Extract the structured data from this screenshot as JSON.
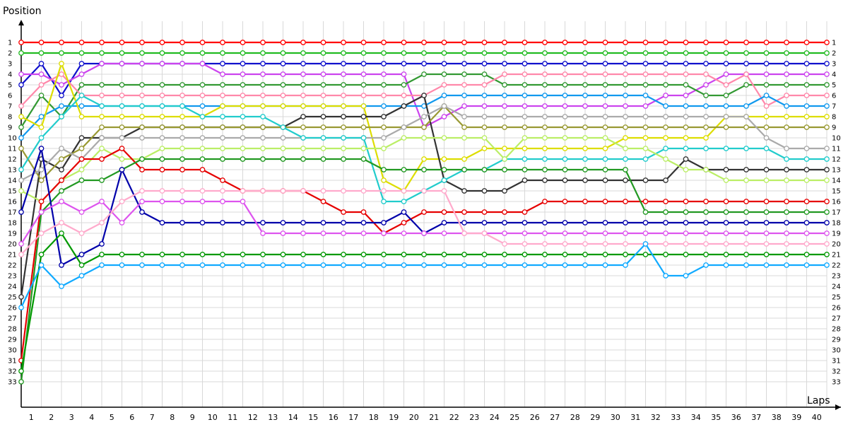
{
  "chart_data": {
    "type": "line",
    "ylabel": "Position",
    "xlabel": "Laps",
    "x": [
      0,
      1,
      2,
      3,
      4,
      5,
      6,
      7,
      8,
      9,
      10,
      11,
      12,
      13,
      14,
      15,
      16,
      17,
      18,
      19,
      20,
      21,
      22,
      23,
      24,
      25,
      26,
      27,
      28,
      29,
      30,
      31,
      32,
      33,
      34,
      35,
      36,
      37,
      38,
      39,
      40
    ],
    "x_tick_labels": [
      1,
      2,
      3,
      4,
      5,
      6,
      7,
      8,
      9,
      10,
      11,
      12,
      13,
      14,
      15,
      16,
      17,
      18,
      19,
      20,
      21,
      22,
      23,
      24,
      25,
      26,
      27,
      28,
      29,
      30,
      31,
      32,
      33,
      34,
      35,
      36,
      37,
      38,
      39,
      40
    ],
    "y_tick_labels": [
      1,
      2,
      3,
      4,
      5,
      6,
      7,
      8,
      9,
      10,
      11,
      12,
      13,
      14,
      15,
      16,
      17,
      18,
      19,
      20,
      21,
      22,
      23,
      24,
      25,
      26,
      27,
      28,
      29,
      30,
      31,
      32,
      33
    ],
    "ylim": [
      1,
      33
    ],
    "y_inverted": true,
    "grid": true,
    "series": [
      {
        "color": "#ff0000",
        "values": [
          1,
          1,
          1,
          1,
          1,
          1,
          1,
          1,
          1,
          1,
          1,
          1,
          1,
          1,
          1,
          1,
          1,
          1,
          1,
          1,
          1,
          1,
          1,
          1,
          1,
          1,
          1,
          1,
          1,
          1,
          1,
          1,
          1,
          1,
          1,
          1,
          1,
          1,
          1,
          1,
          1
        ]
      },
      {
        "color": "#22bb22",
        "values": [
          2,
          2,
          2,
          2,
          2,
          2,
          2,
          2,
          2,
          2,
          2,
          2,
          2,
          2,
          2,
          2,
          2,
          2,
          2,
          2,
          2,
          2,
          2,
          2,
          2,
          2,
          2,
          2,
          2,
          2,
          2,
          2,
          2,
          2,
          2,
          2,
          2,
          2,
          2,
          2,
          2
        ]
      },
      {
        "color": "#1010cc",
        "values": [
          5,
          3,
          6,
          3,
          3,
          3,
          3,
          3,
          3,
          3,
          3,
          3,
          3,
          3,
          3,
          3,
          3,
          3,
          3,
          3,
          3,
          3,
          3,
          3,
          3,
          3,
          3,
          3,
          3,
          3,
          3,
          3,
          3,
          3,
          3,
          3,
          3,
          3,
          3,
          3,
          3
        ]
      },
      {
        "color": "#cc44ee",
        "values": [
          4,
          4,
          5,
          4,
          3,
          3,
          3,
          3,
          3,
          3,
          4,
          4,
          4,
          4,
          4,
          4,
          4,
          4,
          4,
          4,
          9,
          8,
          7,
          7,
          7,
          7,
          7,
          7,
          7,
          7,
          7,
          7,
          6,
          6,
          5,
          4,
          4,
          4,
          4,
          4,
          4
        ]
      },
      {
        "color": "#339933",
        "values": [
          9,
          6,
          8,
          5,
          5,
          5,
          5,
          5,
          5,
          5,
          5,
          5,
          5,
          5,
          5,
          5,
          5,
          5,
          5,
          5,
          4,
          4,
          4,
          4,
          5,
          5,
          5,
          5,
          5,
          5,
          5,
          5,
          5,
          5,
          6,
          6,
          5,
          5,
          5,
          5,
          5
        ]
      },
      {
        "color": "#ff88aa",
        "values": [
          7,
          5,
          4,
          6,
          6,
          6,
          6,
          6,
          6,
          6,
          6,
          6,
          6,
          6,
          6,
          6,
          6,
          6,
          6,
          6,
          6,
          5,
          5,
          5,
          4,
          4,
          4,
          4,
          4,
          4,
          4,
          4,
          4,
          4,
          4,
          5,
          4,
          7,
          6,
          6,
          6
        ]
      },
      {
        "color": "#1199ee",
        "values": [
          10,
          8,
          7,
          7,
          7,
          7,
          7,
          7,
          7,
          7,
          7,
          7,
          7,
          7,
          7,
          7,
          7,
          7,
          7,
          7,
          7,
          6,
          6,
          6,
          6,
          6,
          6,
          6,
          6,
          6,
          6,
          6,
          7,
          7,
          7,
          7,
          7,
          6,
          7,
          7,
          7
        ]
      },
      {
        "color": "#dddd00",
        "values": [
          8,
          9,
          3,
          8,
          8,
          8,
          8,
          8,
          8,
          8,
          7,
          7,
          7,
          7,
          7,
          7,
          7,
          7,
          14,
          15,
          12,
          12,
          12,
          11,
          11,
          11,
          11,
          11,
          11,
          11,
          10,
          10,
          10,
          10,
          10,
          8,
          8,
          8,
          8,
          8,
          8
        ]
      },
      {
        "color": "#333333",
        "values": [
          25,
          12,
          13,
          10,
          10,
          10,
          9,
          9,
          9,
          9,
          9,
          9,
          9,
          9,
          8,
          8,
          8,
          8,
          8,
          7,
          6,
          14,
          15,
          15,
          15,
          14,
          14,
          14,
          14,
          14,
          14,
          14,
          14,
          12,
          13,
          13,
          13,
          13,
          13,
          13,
          13
        ]
      },
      {
        "color": "#999933",
        "values": [
          11,
          14,
          12,
          11,
          9,
          9,
          9,
          9,
          9,
          9,
          9,
          9,
          9,
          9,
          9,
          9,
          9,
          9,
          9,
          9,
          9,
          7,
          9,
          9,
          9,
          9,
          9,
          9,
          9,
          9,
          9,
          9,
          9,
          9,
          9,
          9,
          9,
          9,
          9,
          9,
          9
        ]
      },
      {
        "color": "#aaaaaa",
        "values": [
          14,
          13,
          11,
          12,
          10,
          10,
          10,
          10,
          10,
          10,
          10,
          10,
          10,
          10,
          10,
          10,
          10,
          10,
          10,
          9,
          8,
          7,
          8,
          8,
          8,
          8,
          8,
          8,
          8,
          8,
          8,
          8,
          8,
          8,
          8,
          8,
          8,
          10,
          11,
          11,
          11
        ]
      },
      {
        "color": "#22cccc",
        "values": [
          13,
          10,
          8,
          6,
          7,
          7,
          7,
          7,
          7,
          8,
          8,
          8,
          8,
          9,
          10,
          10,
          10,
          10,
          16,
          16,
          15,
          14,
          13,
          13,
          12,
          12,
          12,
          12,
          12,
          12,
          12,
          12,
          11,
          11,
          11,
          11,
          11,
          11,
          12,
          12,
          12
        ]
      },
      {
        "color": "#bbee66",
        "values": [
          15,
          16,
          14,
          13,
          11,
          12,
          12,
          11,
          11,
          11,
          11,
          11,
          11,
          11,
          11,
          11,
          11,
          11,
          11,
          10,
          10,
          10,
          10,
          10,
          12,
          10,
          10,
          10,
          10,
          10,
          11,
          11,
          12,
          13,
          13,
          14,
          14,
          14,
          14,
          14,
          14
        ]
      },
      {
        "color": "#e60000",
        "values": [
          31,
          16,
          14,
          12,
          12,
          11,
          13,
          13,
          13,
          13,
          14,
          15,
          15,
          15,
          15,
          16,
          17,
          17,
          19,
          18,
          17,
          17,
          17,
          17,
          17,
          17,
          16,
          16,
          16,
          16,
          16,
          16,
          16,
          16,
          16,
          16,
          16,
          16,
          16,
          16,
          16
        ]
      },
      {
        "color": "#229922",
        "values": [
          33,
          17,
          15,
          14,
          14,
          13,
          12,
          12,
          12,
          12,
          12,
          12,
          12,
          12,
          12,
          12,
          12,
          12,
          13,
          13,
          13,
          13,
          13,
          13,
          13,
          13,
          13,
          13,
          13,
          13,
          13,
          17,
          17,
          17,
          17,
          17,
          17,
          17,
          17,
          17,
          17
        ]
      },
      {
        "color": "#0000aa",
        "values": [
          17,
          11,
          22,
          21,
          20,
          13,
          17,
          18,
          18,
          18,
          18,
          18,
          18,
          18,
          18,
          18,
          18,
          18,
          18,
          17,
          19,
          18,
          18,
          18,
          18,
          18,
          18,
          18,
          18,
          18,
          18,
          18,
          18,
          18,
          18,
          18,
          18,
          18,
          18,
          18,
          18
        ]
      },
      {
        "color": "#dd55ee",
        "values": [
          20,
          17,
          16,
          17,
          16,
          18,
          16,
          16,
          16,
          16,
          16,
          16,
          19,
          19,
          19,
          19,
          19,
          19,
          19,
          19,
          19,
          19,
          19,
          19,
          19,
          19,
          19,
          19,
          19,
          19,
          19,
          19,
          19,
          19,
          19,
          19,
          19,
          19,
          19,
          19,
          19
        ]
      },
      {
        "color": "#ffaacc",
        "values": [
          21,
          19,
          18,
          19,
          18,
          16,
          15,
          15,
          15,
          15,
          15,
          15,
          15,
          15,
          15,
          15,
          15,
          15,
          15,
          15,
          15,
          15,
          19,
          19,
          20,
          20,
          20,
          20,
          20,
          20,
          20,
          20,
          20,
          20,
          20,
          20,
          20,
          20,
          20,
          20,
          20
        ]
      },
      {
        "color": "#009900",
        "values": [
          32,
          21,
          19,
          22,
          21,
          21,
          21,
          21,
          21,
          21,
          21,
          21,
          21,
          21,
          21,
          21,
          21,
          21,
          21,
          21,
          21,
          21,
          21,
          21,
          21,
          21,
          21,
          21,
          21,
          21,
          21,
          21,
          21,
          21,
          21,
          21,
          21,
          21,
          21,
          21,
          21
        ]
      },
      {
        "color": "#11aaff",
        "values": [
          26,
          22,
          24,
          23,
          22,
          22,
          22,
          22,
          22,
          22,
          22,
          22,
          22,
          22,
          22,
          22,
          22,
          22,
          22,
          22,
          22,
          22,
          22,
          22,
          22,
          22,
          22,
          22,
          22,
          22,
          22,
          20,
          23,
          23,
          22,
          22,
          22,
          22,
          22,
          22,
          22
        ]
      }
    ]
  }
}
